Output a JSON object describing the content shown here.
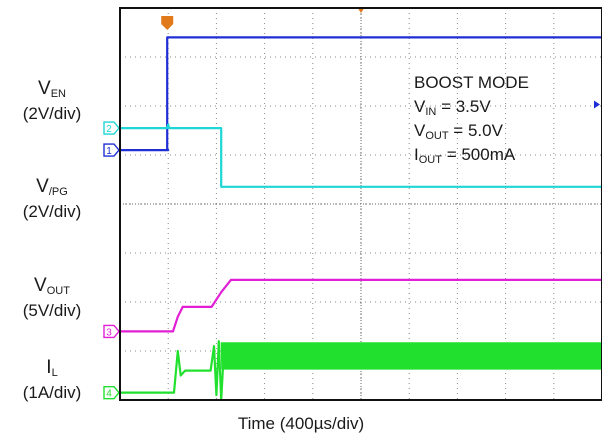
{
  "chart_data": {
    "type": "line",
    "xlabel": "Time (400µs/div)",
    "x_divisions": 10,
    "y_divisions": 8,
    "colors": {
      "en": "#1f2fd6",
      "pg": "#1fd6d6",
      "vout": "#e21fd6",
      "il": "#22e02e",
      "trigger": "#e07a1a",
      "grid": "#8a8a8a"
    },
    "channels": [
      {
        "id": "1",
        "symbol": "V",
        "sub": "EN",
        "scale": "(2V/div)",
        "points": [
          [
            0,
            2.9
          ],
          [
            1,
            2.9
          ],
          [
            0.98,
            2.9
          ],
          [
            0.98,
            0.6
          ],
          [
            10,
            0.6
          ]
        ]
      },
      {
        "id": "2",
        "symbol": "V",
        "sub": "/PG",
        "scale": "(2V/div)",
        "points": [
          [
            0,
            2.45
          ],
          [
            0.98,
            2.45
          ],
          [
            1.0,
            2.38
          ],
          [
            1.02,
            2.45
          ],
          [
            2.1,
            2.45
          ],
          [
            2.1,
            3.65
          ],
          [
            10,
            3.65
          ]
        ]
      },
      {
        "id": "3",
        "symbol": "V",
        "sub": "OUT",
        "scale": "(5V/div)",
        "points": [
          [
            0,
            6.6
          ],
          [
            1.1,
            6.6
          ],
          [
            1.2,
            6.3
          ],
          [
            1.3,
            6.1
          ],
          [
            1.9,
            6.1
          ],
          [
            2.1,
            5.8
          ],
          [
            2.3,
            5.55
          ],
          [
            10,
            5.55
          ]
        ]
      },
      {
        "id": "4",
        "symbol": "I",
        "sub": "L",
        "scale": "(1A/div)",
        "points": [
          [
            0,
            7.85
          ],
          [
            1.12,
            7.85
          ],
          [
            1.2,
            7.0
          ],
          [
            1.26,
            7.5
          ],
          [
            1.35,
            7.4
          ],
          [
            1.88,
            7.4
          ],
          [
            1.95,
            6.9
          ],
          [
            2.0,
            7.9
          ],
          [
            2.05,
            6.8
          ],
          [
            2.1,
            8.0
          ],
          [
            2.15,
            7.1
          ],
          [
            10,
            7.1
          ]
        ],
        "ripple": {
          "from": 2.1,
          "to": 10,
          "center": 7.1,
          "amplitude": 0.28
        }
      }
    ],
    "annotation": {
      "title": "BOOST MODE",
      "lines": [
        {
          "sym": "V",
          "sub": "IN",
          "val": " = 3.5V"
        },
        {
          "sym": "V",
          "sub": "OUT",
          "val": " = 5.0V"
        },
        {
          "sym": "I",
          "sub": "OUT",
          "val": " = 500mA"
        }
      ]
    }
  }
}
